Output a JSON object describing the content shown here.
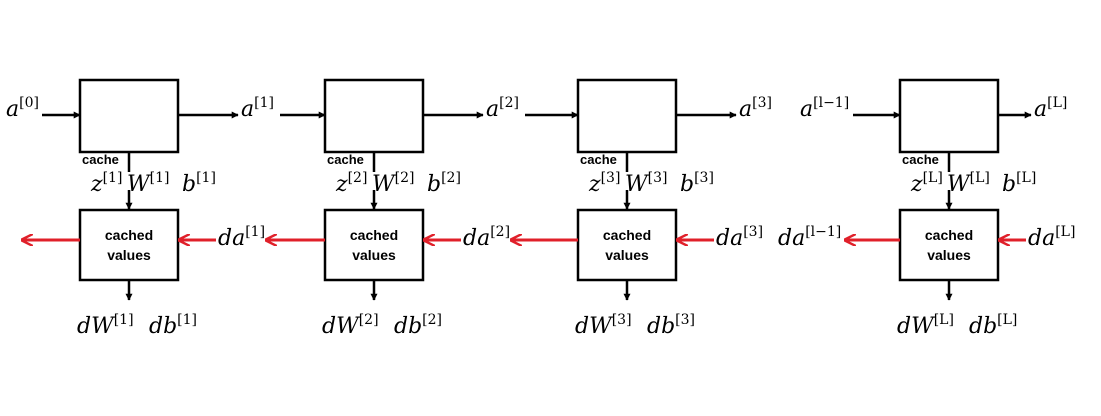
{
  "cache_label": "cache",
  "backward_box_label": [
    "cached",
    "values"
  ],
  "colors": {
    "stroke": "#000000",
    "backward_arrow": "#e0202a"
  },
  "stages": [
    {
      "input": {
        "base": "a",
        "sup": "[0]"
      },
      "output": {
        "base": "a",
        "sup": "[1]"
      },
      "params": [
        {
          "base": "z",
          "sup": "[1]"
        },
        {
          "base": "W",
          "sup": "[1]"
        },
        {
          "base": "b",
          "sup": "[1]"
        }
      ],
      "da_in": {
        "base": "da",
        "sup": "[1]"
      },
      "da_out": null,
      "grads": [
        {
          "base": "dW",
          "sup": "[1]"
        },
        {
          "base": "db",
          "sup": "[1]"
        }
      ]
    },
    {
      "input": null,
      "output": {
        "base": "a",
        "sup": "[2]"
      },
      "params": [
        {
          "base": "z",
          "sup": "[2]"
        },
        {
          "base": "W",
          "sup": "[2]"
        },
        {
          "base": "b",
          "sup": "[2]"
        }
      ],
      "da_in": {
        "base": "da",
        "sup": "[2]"
      },
      "da_out": null,
      "grads": [
        {
          "base": "dW",
          "sup": "[2]"
        },
        {
          "base": "db",
          "sup": "[2]"
        }
      ]
    },
    {
      "input": null,
      "output": {
        "base": "a",
        "sup": "[3]"
      },
      "params": [
        {
          "base": "z",
          "sup": "[3]"
        },
        {
          "base": "W",
          "sup": "[3]"
        },
        {
          "base": "b",
          "sup": "[3]"
        }
      ],
      "da_in": {
        "base": "da",
        "sup": "[3]"
      },
      "da_out": null,
      "grads": [
        {
          "base": "dW",
          "sup": "[3]"
        },
        {
          "base": "db",
          "sup": "[3]"
        }
      ]
    },
    {
      "input": {
        "base": "a",
        "sup": "[l−1]"
      },
      "output": {
        "base": "a",
        "sup": "[L]"
      },
      "params": [
        {
          "base": "z",
          "sup": "[L]"
        },
        {
          "base": "W",
          "sup": "[L]"
        },
        {
          "base": "b",
          "sup": "[L]"
        }
      ],
      "da_in": {
        "base": "da",
        "sup": "[L]"
      },
      "da_out": {
        "base": "da",
        "sup": "[l−1]"
      },
      "grads": [
        {
          "base": "dW",
          "sup": "[L]"
        },
        {
          "base": "db",
          "sup": "[L]"
        }
      ]
    }
  ]
}
